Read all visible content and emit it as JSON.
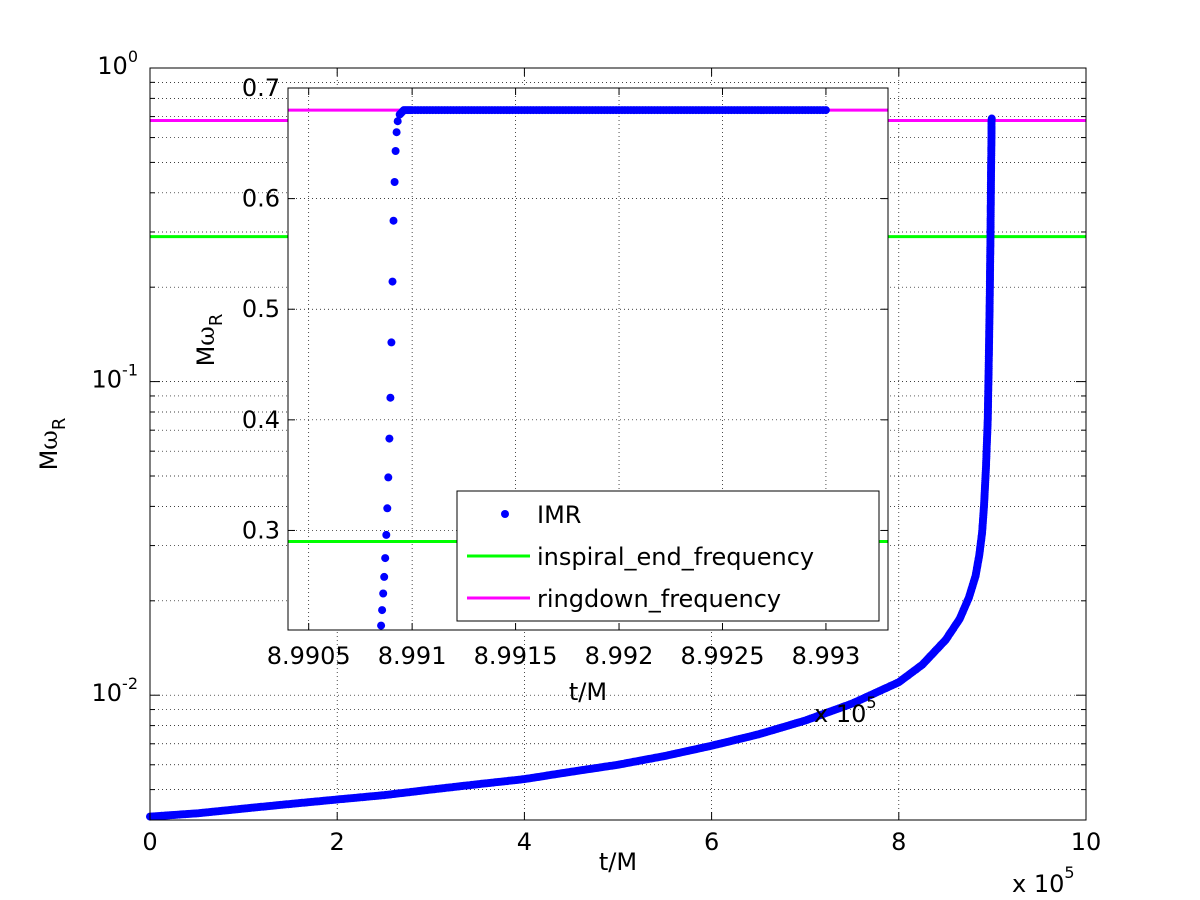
{
  "chart_data": [
    {
      "type": "scatter",
      "scale_y": "log",
      "xlabel": "t/M",
      "ylabel": "Mω_R",
      "x_multiplier": "x 10",
      "x_multiplier_exp": "5",
      "xlim": [
        0,
        10
      ],
      "ylim": [
        0.004,
        1
      ],
      "x_ticks": [
        "0",
        "2",
        "4",
        "6",
        "8",
        "10"
      ],
      "y_ticks": [
        {
          "base": "10",
          "exp": "0",
          "value": 1
        },
        {
          "base": "10",
          "exp": "-1",
          "value": 0.1
        },
        {
          "base": "10",
          "exp": "-2",
          "value": 0.01
        }
      ],
      "grid": true,
      "series": [
        {
          "name": "IMR",
          "kind": "markers",
          "color": "#0000ff",
          "x": [
            0,
            0.5,
            1,
            1.5,
            2,
            2.5,
            3,
            3.5,
            4,
            4.5,
            5,
            5.5,
            6,
            6.5,
            7,
            7.5,
            8,
            8.25,
            8.5,
            8.65,
            8.75,
            8.82,
            8.86,
            8.89,
            8.91,
            8.93,
            8.95,
            8.96,
            8.97,
            8.98,
            8.985,
            8.99,
            8.991,
            8.993
          ],
          "y": [
            0.0041,
            0.0042,
            0.00435,
            0.0045,
            0.00465,
            0.0048,
            0.005,
            0.0052,
            0.0054,
            0.0057,
            0.006,
            0.0064,
            0.0069,
            0.0075,
            0.0083,
            0.0094,
            0.011,
            0.0125,
            0.015,
            0.0175,
            0.0205,
            0.024,
            0.028,
            0.033,
            0.04,
            0.052,
            0.075,
            0.11,
            0.17,
            0.3,
            0.45,
            0.6,
            0.68,
            0.69
          ]
        },
        {
          "name": "inspiral_end_frequency",
          "kind": "hline",
          "color": "#00ff00",
          "y": 0.29
        },
        {
          "name": "ringdown_frequency",
          "kind": "hline",
          "color": "#ff00ff",
          "y": 0.68
        }
      ]
    },
    {
      "type": "scatter",
      "xlabel": "t/M",
      "ylabel": "Mω_R",
      "x_multiplier": "x 10",
      "x_multiplier_exp": "5",
      "xlim": [
        8.9904,
        8.9933
      ],
      "ylim": [
        0.21,
        0.7
      ],
      "x_ticks": [
        "8.9905",
        "8.991",
        "8.9915",
        "8.992",
        "8.9925",
        "8.993"
      ],
      "y_ticks": [
        "0.3",
        "0.4",
        "0.5",
        "0.6",
        "0.7"
      ],
      "grid": true,
      "legend": {
        "location": "lower-right",
        "entries": [
          "IMR",
          "inspiral_end_frequency",
          "ringdown_frequency"
        ]
      },
      "series": [
        {
          "name": "IMR",
          "kind": "markers",
          "color": "#0000ff",
          "x": [
            8.99085,
            8.990855,
            8.99086,
            8.990865,
            8.99087,
            8.990875,
            8.99088,
            8.990885,
            8.99089,
            8.990895,
            8.9909,
            8.990905,
            8.99091,
            8.990915,
            8.99092,
            8.990925,
            8.99093,
            8.99094,
            8.99095,
            8.99096,
            8.99098,
            8.991,
            8.9911,
            8.9912,
            8.9914,
            8.9916,
            8.9918,
            8.992,
            8.9922,
            8.9924,
            8.9926,
            8.9928,
            8.993
          ],
          "y": [
            0.214,
            0.228,
            0.243,
            0.258,
            0.275,
            0.296,
            0.32,
            0.348,
            0.383,
            0.42,
            0.47,
            0.525,
            0.58,
            0.615,
            0.643,
            0.66,
            0.67,
            0.676,
            0.678,
            0.68,
            0.68,
            0.68,
            0.68,
            0.68,
            0.68,
            0.68,
            0.68,
            0.68,
            0.68,
            0.68,
            0.68,
            0.68,
            0.68
          ]
        },
        {
          "name": "inspiral_end_frequency",
          "kind": "hline",
          "color": "#00ff00",
          "y": 0.29
        },
        {
          "name": "ringdown_frequency",
          "kind": "hline",
          "color": "#ff00ff",
          "y": 0.68
        }
      ]
    }
  ]
}
